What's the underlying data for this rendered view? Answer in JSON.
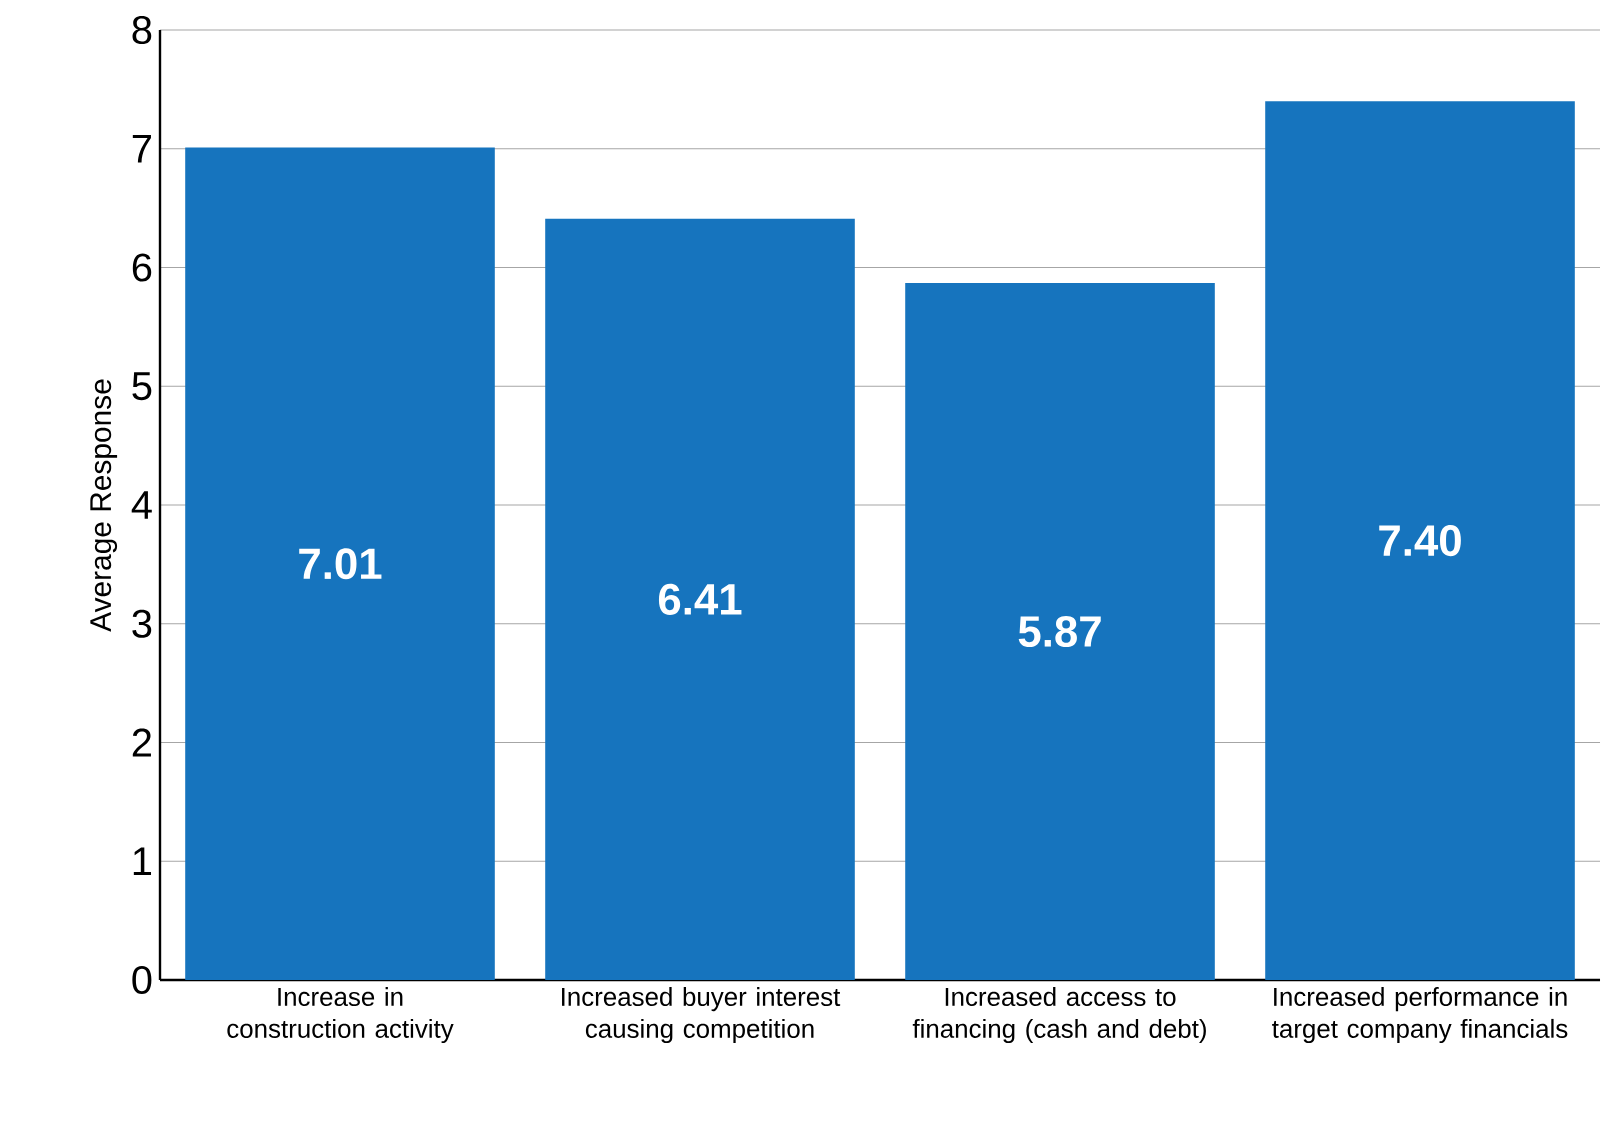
{
  "chart_data": {
    "type": "bar",
    "ylabel": "Average Response",
    "categories": [
      "Increase in construction activity",
      "Increased buyer interest causing competition",
      "Increased access to financing (cash and debt)",
      "Increased performance in target company financials"
    ],
    "values": [
      7.01,
      6.41,
      5.87,
      7.4
    ],
    "value_labels": [
      "7.01",
      "6.41",
      "5.87",
      "7.40"
    ],
    "color": "#1674be",
    "ylim": [
      0,
      8
    ],
    "yticks": [
      0,
      1,
      2,
      3,
      4,
      5,
      6,
      7,
      8
    ],
    "grid": "y"
  }
}
